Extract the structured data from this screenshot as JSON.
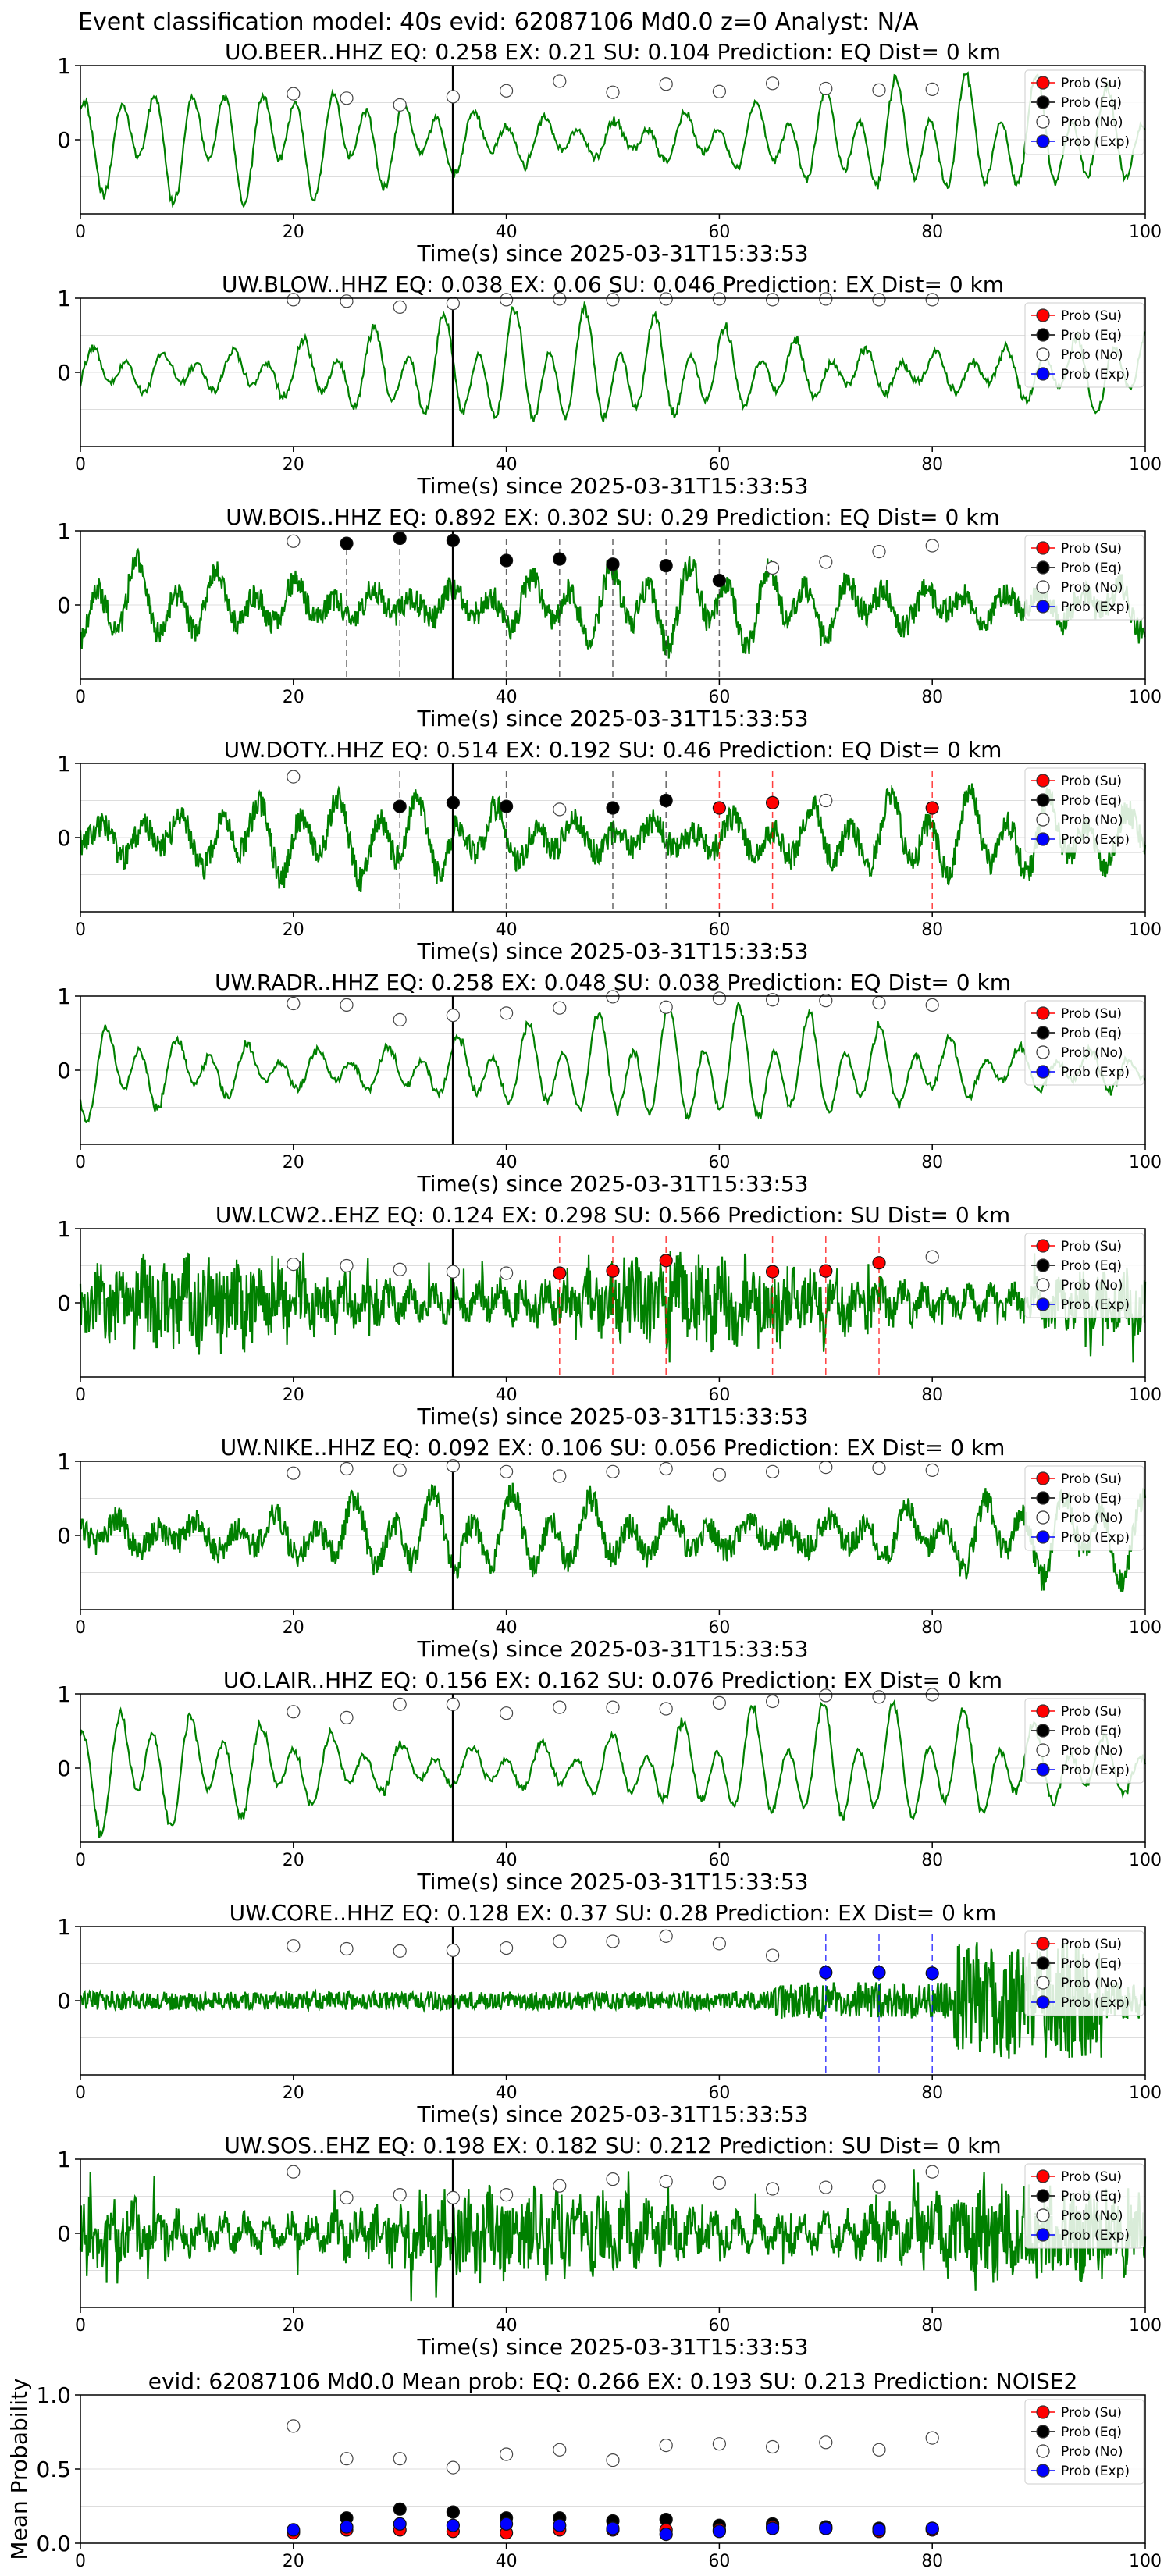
{
  "figure": {
    "suptitle": "Event classification model: 40s evid: 62087106 Md0.0 z=0 Analyst: N/A",
    "legend_labels": [
      "Prob (Su)",
      "Prob (Eq)",
      "Prob (No)",
      "Prob (Exp)"
    ],
    "colors": {
      "su": "#ff0000",
      "eq": "#000000",
      "no": "#ffffff",
      "exp": "#0000ff",
      "trace": "#008000",
      "marker_edge": "#333333"
    },
    "x_ticks": [
      0,
      20,
      40,
      60,
      80,
      100
    ]
  },
  "chart_data": [
    {
      "type": "line",
      "title": "UO.BEER..HHZ   EQ: 0.258  EX: 0.21  SU: 0.104   Prediction: EQ    Dist= 0 km",
      "xlabel": "Time(s) since 2025-03-31T15:33:53",
      "ylabel": "",
      "xlim": [
        0,
        100
      ],
      "ylim": [
        -1,
        1
      ],
      "yticks": [
        0,
        1
      ],
      "pick_line_x": 35,
      "trace_style": "smooth",
      "x": [
        20,
        25,
        30,
        35,
        40,
        45,
        50,
        55,
        60,
        65,
        70,
        75,
        80
      ],
      "series": [
        {
          "name": "Prob (No)",
          "marker": "no",
          "values": [
            0.62,
            0.56,
            0.47,
            0.58,
            0.66,
            0.79,
            0.64,
            0.75,
            0.65,
            0.76,
            0.69,
            0.67,
            0.68
          ]
        }
      ],
      "dashed_lines": []
    },
    {
      "type": "line",
      "title": "UW.BLOW..HHZ   EQ: 0.038  EX: 0.06  SU: 0.046   Prediction: EX    Dist= 0 km",
      "xlabel": "Time(s) since 2025-03-31T15:33:53",
      "ylabel": "",
      "xlim": [
        0,
        100
      ],
      "ylim": [
        -1,
        1
      ],
      "yticks": [
        0,
        1
      ],
      "pick_line_x": 35,
      "trace_style": "smooth",
      "x": [
        20,
        25,
        30,
        35,
        40,
        45,
        50,
        55,
        60,
        65,
        70,
        75,
        80
      ],
      "series": [
        {
          "name": "Prob (No)",
          "marker": "no",
          "values": [
            0.98,
            0.96,
            0.88,
            0.93,
            0.98,
            0.99,
            0.98,
            0.99,
            0.99,
            0.98,
            0.99,
            0.98,
            0.98
          ]
        }
      ],
      "dashed_lines": []
    },
    {
      "type": "line",
      "title": "UW.BOIS..HHZ   EQ: 0.892  EX: 0.302  SU: 0.29   Prediction: EQ    Dist= 0 km",
      "xlabel": "Time(s) since 2025-03-31T15:33:53",
      "ylabel": "",
      "xlim": [
        0,
        100
      ],
      "ylim": [
        -1,
        1
      ],
      "yticks": [
        0,
        1
      ],
      "pick_line_x": 35,
      "trace_style": "noisy",
      "x": [
        20,
        25,
        30,
        35,
        40,
        45,
        50,
        55,
        60,
        65,
        70,
        75,
        80
      ],
      "series": [
        {
          "name": "Prob (No)",
          "marker": "no",
          "values": [
            0.86,
            null,
            null,
            null,
            null,
            null,
            null,
            null,
            null,
            0.5,
            0.58,
            0.72,
            0.8
          ]
        },
        {
          "name": "Prob (Eq)",
          "marker": "eq",
          "values": [
            null,
            0.83,
            0.9,
            0.87,
            0.6,
            0.62,
            0.55,
            0.53,
            0.33,
            null,
            null,
            null,
            null
          ]
        }
      ],
      "dashed_lines": [
        {
          "x": 25,
          "marker": "eq"
        },
        {
          "x": 30,
          "marker": "eq"
        },
        {
          "x": 40,
          "marker": "eq"
        },
        {
          "x": 45,
          "marker": "eq"
        },
        {
          "x": 50,
          "marker": "eq"
        },
        {
          "x": 55,
          "marker": "eq"
        },
        {
          "x": 60,
          "marker": "eq"
        }
      ]
    },
    {
      "type": "line",
      "title": "UW.DOTY..HHZ   EQ: 0.514  EX: 0.192  SU: 0.46   Prediction: EQ    Dist= 0 km",
      "xlabel": "Time(s) since 2025-03-31T15:33:53",
      "ylabel": "",
      "xlim": [
        0,
        100
      ],
      "ylim": [
        -1,
        1
      ],
      "yticks": [
        0,
        1
      ],
      "pick_line_x": 35,
      "trace_style": "noisy",
      "x": [
        20,
        25,
        30,
        35,
        40,
        45,
        50,
        55,
        60,
        65,
        70,
        75,
        80
      ],
      "series": [
        {
          "name": "Prob (No)",
          "marker": "no",
          "values": [
            0.82,
            null,
            null,
            null,
            null,
            0.38,
            null,
            null,
            null,
            null,
            0.5,
            null,
            null
          ]
        },
        {
          "name": "Prob (Eq)",
          "marker": "eq",
          "values": [
            null,
            null,
            0.42,
            0.47,
            0.42,
            null,
            0.4,
            0.5,
            null,
            null,
            null,
            null,
            null
          ]
        },
        {
          "name": "Prob (Su)",
          "marker": "su",
          "values": [
            null,
            null,
            null,
            null,
            null,
            null,
            null,
            null,
            0.4,
            0.47,
            null,
            null,
            0.4
          ]
        }
      ],
      "dashed_lines": [
        {
          "x": 30,
          "marker": "eq"
        },
        {
          "x": 40,
          "marker": "eq"
        },
        {
          "x": 50,
          "marker": "eq"
        },
        {
          "x": 55,
          "marker": "eq"
        },
        {
          "x": 60,
          "marker": "su"
        },
        {
          "x": 65,
          "marker": "su"
        },
        {
          "x": 80,
          "marker": "su"
        }
      ]
    },
    {
      "type": "line",
      "title": "UW.RADR..HHZ   EQ: 0.258  EX: 0.048  SU: 0.038   Prediction: EQ    Dist= 0 km",
      "xlabel": "Time(s) since 2025-03-31T15:33:53",
      "ylabel": "",
      "xlim": [
        0,
        100
      ],
      "ylim": [
        -1,
        1
      ],
      "yticks": [
        0,
        1
      ],
      "pick_line_x": 35,
      "trace_style": "smooth",
      "x": [
        20,
        25,
        30,
        35,
        40,
        45,
        50,
        55,
        60,
        65,
        70,
        75,
        80
      ],
      "series": [
        {
          "name": "Prob (No)",
          "marker": "no",
          "values": [
            0.9,
            0.88,
            0.68,
            0.74,
            0.77,
            0.84,
            0.99,
            0.85,
            0.97,
            0.95,
            0.94,
            0.91,
            0.88
          ]
        }
      ],
      "dashed_lines": []
    },
    {
      "type": "line",
      "title": "UW.LCW2..EHZ   EQ: 0.124  EX: 0.298  SU: 0.566   Prediction: SU    Dist= 0 km",
      "xlabel": "Time(s) since 2025-03-31T15:33:53",
      "ylabel": "",
      "xlim": [
        0,
        100
      ],
      "ylim": [
        -1,
        1
      ],
      "yticks": [
        0,
        1
      ],
      "pick_line_x": 35,
      "trace_style": "spiky",
      "x": [
        20,
        25,
        30,
        35,
        40,
        45,
        50,
        55,
        60,
        65,
        70,
        75,
        80
      ],
      "series": [
        {
          "name": "Prob (No)",
          "marker": "no",
          "values": [
            0.52,
            0.5,
            0.45,
            0.42,
            0.4,
            null,
            null,
            null,
            null,
            null,
            null,
            null,
            0.62
          ]
        },
        {
          "name": "Prob (Su)",
          "marker": "su",
          "values": [
            null,
            null,
            null,
            null,
            null,
            0.4,
            0.43,
            0.57,
            null,
            0.42,
            0.43,
            0.54,
            null
          ]
        }
      ],
      "dashed_lines": [
        {
          "x": 45,
          "marker": "su"
        },
        {
          "x": 50,
          "marker": "su"
        },
        {
          "x": 55,
          "marker": "su"
        },
        {
          "x": 65,
          "marker": "su"
        },
        {
          "x": 70,
          "marker": "su"
        },
        {
          "x": 75,
          "marker": "su"
        }
      ]
    },
    {
      "type": "line",
      "title": "UW.NIKE..HHZ   EQ: 0.092  EX: 0.106  SU: 0.056   Prediction: EX    Dist= 0 km",
      "xlabel": "Time(s) since 2025-03-31T15:33:53",
      "ylabel": "",
      "xlim": [
        0,
        100
      ],
      "ylim": [
        -1,
        1
      ],
      "yticks": [
        0,
        1
      ],
      "pick_line_x": 35,
      "trace_style": "noisy",
      "x": [
        20,
        25,
        30,
        35,
        40,
        45,
        50,
        55,
        60,
        65,
        70,
        75,
        80
      ],
      "series": [
        {
          "name": "Prob (No)",
          "marker": "no",
          "values": [
            0.84,
            0.9,
            0.88,
            0.94,
            0.86,
            0.8,
            0.86,
            0.9,
            0.82,
            0.86,
            0.92,
            0.91,
            0.88
          ]
        }
      ],
      "dashed_lines": []
    },
    {
      "type": "line",
      "title": "UO.LAIR..HHZ   EQ: 0.156  EX: 0.162  SU: 0.076   Prediction: EX    Dist= 0 km",
      "xlabel": "Time(s) since 2025-03-31T15:33:53",
      "ylabel": "",
      "xlim": [
        0,
        100
      ],
      "ylim": [
        -1,
        1
      ],
      "yticks": [
        0,
        1
      ],
      "pick_line_x": 35,
      "trace_style": "smooth",
      "x": [
        20,
        25,
        30,
        35,
        40,
        45,
        50,
        55,
        60,
        65,
        70,
        75,
        80
      ],
      "series": [
        {
          "name": "Prob (No)",
          "marker": "no",
          "values": [
            0.76,
            0.68,
            0.86,
            0.86,
            0.74,
            0.82,
            0.82,
            0.8,
            0.88,
            0.9,
            0.98,
            0.96,
            0.99
          ]
        }
      ],
      "dashed_lines": []
    },
    {
      "type": "line",
      "title": "UW.CORE..HHZ   EQ: 0.128  EX: 0.37  SU: 0.28   Prediction: EX    Dist= 0 km",
      "xlabel": "Time(s) since 2025-03-31T15:33:53",
      "ylabel": "",
      "xlim": [
        0,
        100
      ],
      "ylim": [
        -1,
        1
      ],
      "yticks": [
        0,
        1
      ],
      "pick_line_x": 35,
      "trace_style": "quiet_burst",
      "x": [
        20,
        25,
        30,
        35,
        40,
        45,
        50,
        55,
        60,
        65,
        70,
        75,
        80
      ],
      "series": [
        {
          "name": "Prob (No)",
          "marker": "no",
          "values": [
            0.74,
            0.7,
            0.67,
            0.68,
            0.71,
            0.8,
            0.8,
            0.87,
            0.77,
            0.61,
            null,
            null,
            null
          ]
        },
        {
          "name": "Prob (Exp)",
          "marker": "exp",
          "values": [
            null,
            null,
            null,
            null,
            null,
            null,
            null,
            null,
            null,
            null,
            0.38,
            0.38,
            0.37
          ]
        }
      ],
      "dashed_lines": [
        {
          "x": 70,
          "marker": "exp"
        },
        {
          "x": 75,
          "marker": "exp"
        },
        {
          "x": 80,
          "marker": "exp"
        }
      ]
    },
    {
      "type": "line",
      "title": "UW.SOS..EHZ   EQ: 0.198  EX: 0.182  SU: 0.212   Prediction: SU    Dist= 0 km",
      "xlabel": "Time(s) since 2025-03-31T15:33:53",
      "ylabel": "",
      "xlim": [
        0,
        100
      ],
      "ylim": [
        -1,
        1
      ],
      "yticks": [
        0,
        1
      ],
      "pick_line_x": 35,
      "trace_style": "spiky",
      "x": [
        20,
        25,
        30,
        35,
        40,
        45,
        50,
        55,
        60,
        65,
        70,
        75,
        80
      ],
      "series": [
        {
          "name": "Prob (No)",
          "marker": "no",
          "values": [
            0.83,
            0.48,
            0.52,
            0.48,
            0.52,
            0.64,
            0.73,
            0.7,
            0.68,
            0.6,
            0.62,
            0.63,
            0.83
          ]
        }
      ],
      "dashed_lines": []
    },
    {
      "type": "scatter",
      "title": "evid: 62087106  Md0.0   Mean prob:   EQ: 0.266  EX: 0.193  SU: 0.213   Prediction: NOISE2",
      "xlabel": "",
      "ylabel": "Mean Probability",
      "xlim": [
        0,
        100
      ],
      "ylim": [
        0,
        1
      ],
      "yticks": [
        0.0,
        0.5,
        1.0
      ],
      "ytick_labels": [
        "0.0",
        "0.5",
        "1.0"
      ],
      "pick_line_x": null,
      "x": [
        20,
        25,
        30,
        35,
        40,
        45,
        50,
        55,
        60,
        65,
        70,
        75,
        80
      ],
      "series": [
        {
          "name": "Prob (No)",
          "marker": "no",
          "values": [
            0.79,
            0.57,
            0.57,
            0.51,
            0.6,
            0.63,
            0.56,
            0.66,
            0.67,
            0.65,
            0.68,
            0.63,
            0.71
          ]
        },
        {
          "name": "Prob (Eq)",
          "marker": "eq",
          "values": [
            0.08,
            0.17,
            0.23,
            0.21,
            0.17,
            0.17,
            0.15,
            0.16,
            0.12,
            0.13,
            0.11,
            0.1,
            0.1
          ]
        },
        {
          "name": "Prob (Su)",
          "marker": "su",
          "values": [
            0.07,
            0.09,
            0.09,
            0.08,
            0.07,
            0.09,
            0.09,
            0.09,
            0.09,
            0.11,
            0.1,
            0.08,
            0.09
          ]
        },
        {
          "name": "Prob (Exp)",
          "marker": "exp",
          "values": [
            0.09,
            0.11,
            0.13,
            0.12,
            0.13,
            0.12,
            0.1,
            0.06,
            0.08,
            0.1,
            0.1,
            0.09,
            0.1
          ]
        }
      ],
      "dashed_lines": []
    }
  ]
}
